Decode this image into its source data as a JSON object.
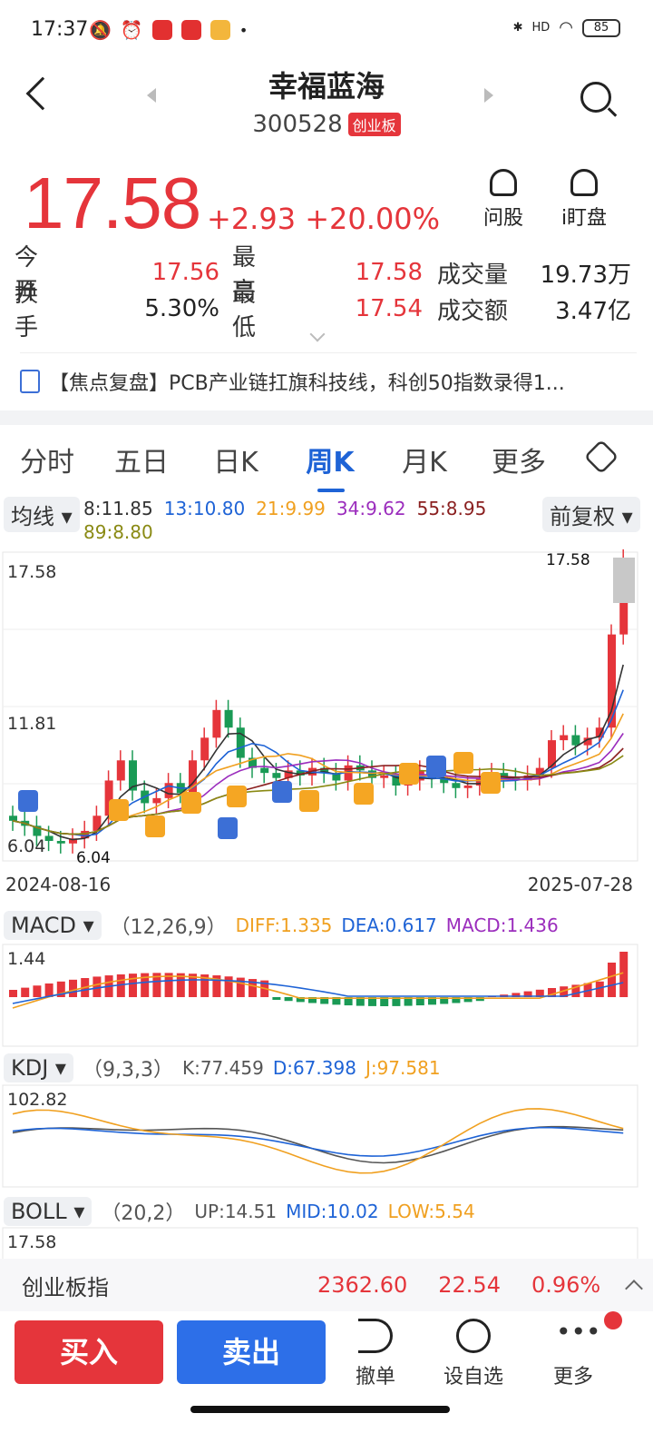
{
  "status": {
    "time": "17:37",
    "battery": "85",
    "network": "HD"
  },
  "header": {
    "title": "幸福蓝海",
    "code": "300528",
    "board": "创业板"
  },
  "quote": {
    "price": "17.58",
    "change": "+2.93",
    "change_pct": "+20.00%"
  },
  "header_actions": {
    "ask": "问股",
    "watch": "i盯盘"
  },
  "stats": {
    "row1": {
      "l1": "今 开",
      "v1": "17.56",
      "l2": "最 高",
      "v2": "17.58",
      "l3": "成交量",
      "v3": "19.73万"
    },
    "row2": {
      "l1": "换 手",
      "v1": "5.30%",
      "l2": "最 低",
      "v2": "17.54",
      "l3": "成交额",
      "v3": "3.47亿"
    }
  },
  "news": {
    "text": "【焦点复盘】PCB产业链扛旗科技线，科创50指数录得1..."
  },
  "tabs": [
    "分时",
    "五日",
    "日K",
    "周K",
    "月K",
    "更多"
  ],
  "active_tab": "周K",
  "ma": {
    "chip": "均线",
    "adjust": "前复权",
    "items": [
      {
        "label": "8:11.85",
        "color": "#333333"
      },
      {
        "label": "13:10.80",
        "color": "#1e63d6"
      },
      {
        "label": "21:9.99",
        "color": "#f0a020"
      },
      {
        "label": "34:9.62",
        "color": "#9b2dbd"
      },
      {
        "label": "55:8.95",
        "color": "#8a1f1f"
      },
      {
        "label": "89:8.80",
        "color": "#8a8a14"
      }
    ]
  },
  "kline": {
    "y_max_label": "17.58",
    "y_mid_label": "11.81",
    "y_min_label": "6.04",
    "max_marker": "17.58",
    "min_marker": "6.04",
    "date_start": "2024-08-16",
    "date_end": "2025-07-28"
  },
  "macd": {
    "name": "MACD",
    "params": "（12,26,9）",
    "diff": "DIFF:1.335",
    "dea": "DEA:0.617",
    "macd": "MACD:1.436",
    "ymax": "1.44"
  },
  "kdj": {
    "name": "KDJ",
    "params": "（9,3,3）",
    "k": "K:77.459",
    "d": "D:67.398",
    "j": "J:97.581",
    "ymax": "102.82"
  },
  "boll": {
    "name": "BOLL",
    "params": "（20,2）",
    "up": "UP:14.51",
    "mid": "MID:10.02",
    "low": "LOW:5.54",
    "ymax": "17.58"
  },
  "index_bar": {
    "name": "创业板指",
    "value": "2362.60",
    "change": "22.54",
    "pct": "0.96%"
  },
  "actions": {
    "buy": "买入",
    "sell": "卖出",
    "cancel": "撤单",
    "watchlist": "设自选",
    "more": "更多"
  }
}
